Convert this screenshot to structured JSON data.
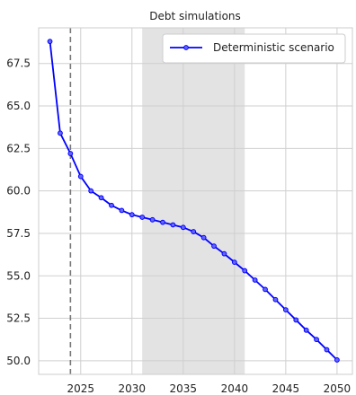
{
  "chart_data": {
    "type": "line",
    "title": "Debt simulations",
    "xlabel": "",
    "ylabel": "",
    "xlim": [
      2020.9,
      2051.5
    ],
    "ylim": [
      49.2,
      69.6
    ],
    "xticks": [
      2025,
      2030,
      2035,
      2040,
      2045,
      2050
    ],
    "yticks": [
      50.0,
      52.5,
      55.0,
      57.5,
      60.0,
      62.5,
      65.0,
      67.5
    ],
    "grid": true,
    "legend_position": "top-right",
    "shaded_region": {
      "x_start": 2031,
      "x_end": 2041,
      "color": "#e3e3e3"
    },
    "vertical_line": {
      "x": 2024,
      "style": "dashed",
      "color": "#777777"
    },
    "series": [
      {
        "name": "Deterministic scenario",
        "color": "#0000ff",
        "marker": "circle",
        "x": [
          2022,
          2023,
          2024,
          2025,
          2026,
          2027,
          2028,
          2029,
          2030,
          2031,
          2032,
          2033,
          2034,
          2035,
          2036,
          2037,
          2038,
          2039,
          2040,
          2041,
          2042,
          2043,
          2044,
          2045,
          2046,
          2047,
          2048,
          2049,
          2050
        ],
        "values": [
          68.8,
          63.4,
          62.2,
          60.85,
          60.0,
          59.6,
          59.15,
          58.85,
          58.6,
          58.45,
          58.3,
          58.15,
          58.0,
          57.85,
          57.6,
          57.25,
          56.75,
          56.3,
          55.8,
          55.3,
          54.75,
          54.2,
          53.6,
          53.0,
          52.4,
          51.8,
          51.25,
          50.65,
          50.05
        ]
      }
    ]
  }
}
